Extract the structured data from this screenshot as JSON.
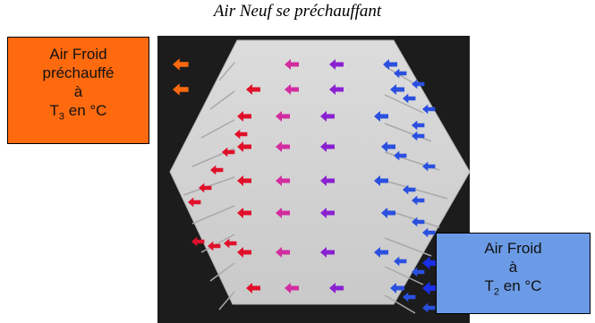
{
  "title": "Air Neuf se préchauffant",
  "label_left": {
    "line1": "Air Froid",
    "line2": "préchauffé",
    "line3": "à",
    "line4_pre": "T",
    "line4_sub": "3",
    "line4_post": " en °C"
  },
  "label_right": {
    "line1": "Air Froid",
    "line2": "à",
    "line3_pre": "T",
    "line3_sub": "2",
    "line3_post": " en °C"
  },
  "colors": {
    "background_dark": "#1a1a1a",
    "hexagon": "#d4d4d4",
    "hot_arrow": "#e0102a",
    "warm_arrow": "#d22ca0",
    "cool_arrow": "#8a20d0",
    "cold_arrow": "#2a50e0",
    "box_left": "#ff6a0e",
    "box_right": "#6b9be6"
  },
  "arrows": {
    "direction": "left",
    "icon": "arrow-left-icon"
  }
}
